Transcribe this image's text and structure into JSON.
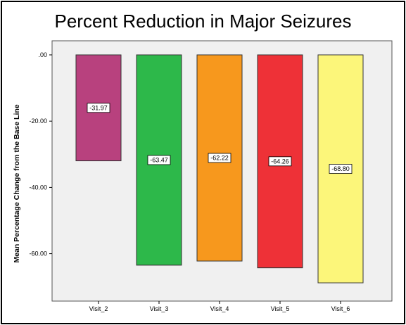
{
  "chart_data": {
    "type": "bar",
    "title": "Percent Reduction in Major Seizures",
    "xlabel": "",
    "ylabel": "Mean Percentage Change from the Base Line",
    "categories": [
      "Visit_2",
      "Visit_3",
      "Visit_4",
      "Visit_5",
      "Visit_6"
    ],
    "values": [
      -31.97,
      -63.47,
      -62.22,
      -64.26,
      -68.8
    ],
    "value_labels": [
      "-31.97",
      "-63.47",
      "-62.22",
      "-64.26",
      "-68.80"
    ],
    "colors": [
      "#B8417E",
      "#2DB84A",
      "#F7981D",
      "#EE3137",
      "#FCF67A"
    ],
    "yticks": [
      0,
      -20,
      -40,
      -60
    ],
    "ytick_labels": [
      ".00",
      "-20.00",
      "-40.00",
      "-60.00"
    ],
    "ylim": [
      -74,
      0
    ],
    "grid": false,
    "plot_background": "#F0F0F0"
  }
}
